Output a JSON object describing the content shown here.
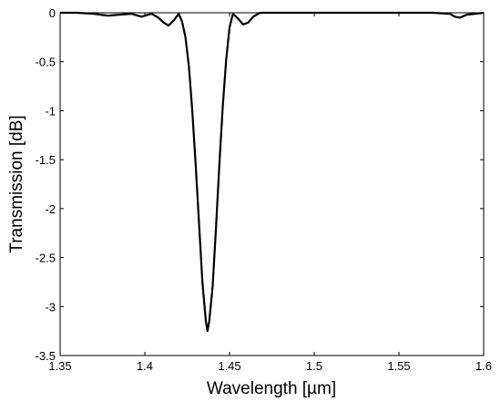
{
  "chart_data": {
    "type": "line",
    "xlabel": "Wavelength [µm]",
    "ylabel": "Transmission [dB]",
    "xlim": [
      1.35,
      1.6
    ],
    "ylim": [
      -3.5,
      0
    ],
    "x_ticks": [
      "1.35",
      "1.4",
      "1.45",
      "1.5",
      "1.55",
      "1.6"
    ],
    "y_ticks": [
      "0",
      "-0.5",
      "-1",
      "-1.5",
      "-2",
      "-2.5",
      "-3",
      "-3.5"
    ],
    "grid": false,
    "line_color": "#000000",
    "series": [
      {
        "x": [
          1.35,
          1.36,
          1.37,
          1.378,
          1.385,
          1.392,
          1.398,
          1.404,
          1.408,
          1.411,
          1.414,
          1.417,
          1.42,
          1.422,
          1.424,
          1.426,
          1.428,
          1.43,
          1.432,
          1.434,
          1.436,
          1.437,
          1.438,
          1.44,
          1.442,
          1.444,
          1.446,
          1.448,
          1.45,
          1.452,
          1.455,
          1.458,
          1.461,
          1.464,
          1.468,
          1.475,
          1.49,
          1.51,
          1.53,
          1.55,
          1.57,
          1.58,
          1.583,
          1.586,
          1.59,
          1.595,
          1.6
        ],
        "y": [
          0,
          0,
          -0.01,
          -0.03,
          -0.02,
          -0.01,
          -0.04,
          -0.01,
          -0.05,
          -0.1,
          -0.13,
          -0.08,
          -0.01,
          -0.09,
          -0.25,
          -0.55,
          -1.0,
          -1.55,
          -2.15,
          -2.75,
          -3.15,
          -3.25,
          -3.15,
          -2.8,
          -2.2,
          -1.55,
          -0.95,
          -0.48,
          -0.15,
          -0.01,
          -0.06,
          -0.12,
          -0.1,
          -0.04,
          0,
          0,
          0,
          0,
          0,
          0,
          0,
          -0.01,
          -0.04,
          -0.05,
          -0.02,
          -0.01,
          0
        ]
      }
    ]
  }
}
